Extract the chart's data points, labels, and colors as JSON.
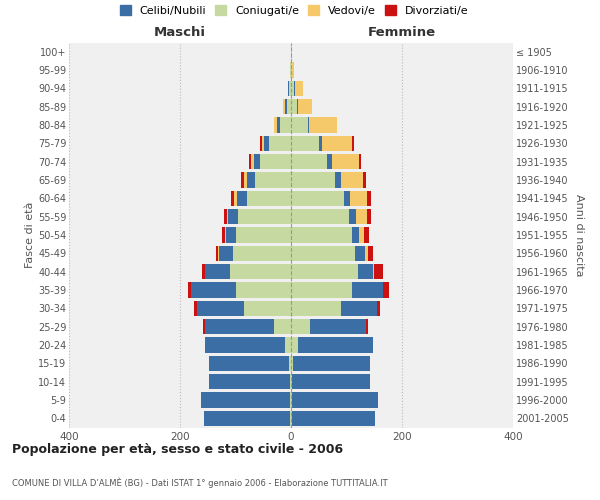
{
  "age_groups": [
    "0-4",
    "5-9",
    "10-14",
    "15-19",
    "20-24",
    "25-29",
    "30-34",
    "35-39",
    "40-44",
    "45-49",
    "50-54",
    "55-59",
    "60-64",
    "65-69",
    "70-74",
    "75-79",
    "80-84",
    "85-89",
    "90-94",
    "95-99",
    "100+"
  ],
  "birth_years": [
    "2001-2005",
    "1996-2000",
    "1991-1995",
    "1986-1990",
    "1981-1985",
    "1976-1980",
    "1971-1975",
    "1966-1970",
    "1961-1965",
    "1956-1960",
    "1951-1955",
    "1946-1950",
    "1941-1945",
    "1936-1940",
    "1931-1935",
    "1926-1930",
    "1921-1925",
    "1916-1920",
    "1911-1915",
    "1906-1910",
    "≤ 1905"
  ],
  "colors": {
    "celibi": "#3a6ea5",
    "coniugati": "#c5d9a0",
    "vedovi": "#f5c96a",
    "divorziati": "#cc1111"
  },
  "maschi": {
    "coniugati": [
      2,
      2,
      2,
      3,
      10,
      30,
      85,
      100,
      110,
      105,
      100,
      95,
      80,
      65,
      55,
      40,
      20,
      8,
      3,
      1,
      0
    ],
    "celibi": [
      155,
      160,
      145,
      145,
      145,
      125,
      85,
      80,
      45,
      25,
      17,
      18,
      18,
      15,
      12,
      8,
      5,
      3,
      2,
      0,
      0
    ],
    "vedovi": [
      0,
      0,
      0,
      0,
      0,
      0,
      0,
      0,
      0,
      1,
      2,
      3,
      5,
      5,
      5,
      5,
      5,
      3,
      1,
      0,
      0
    ],
    "divorziati": [
      0,
      0,
      0,
      0,
      0,
      3,
      4,
      5,
      5,
      5,
      5,
      5,
      5,
      5,
      3,
      3,
      0,
      0,
      0,
      0,
      0
    ]
  },
  "femmine": {
    "coniugati": [
      2,
      2,
      2,
      3,
      12,
      35,
      90,
      110,
      120,
      115,
      110,
      105,
      95,
      80,
      65,
      50,
      30,
      10,
      5,
      2,
      0
    ],
    "celibi": [
      150,
      155,
      140,
      140,
      135,
      100,
      65,
      55,
      28,
      18,
      12,
      12,
      12,
      10,
      8,
      5,
      3,
      2,
      2,
      0,
      0
    ],
    "vedovi": [
      0,
      0,
      0,
      0,
      0,
      0,
      0,
      1,
      2,
      5,
      10,
      20,
      30,
      40,
      50,
      55,
      50,
      25,
      15,
      4,
      1
    ],
    "divorziati": [
      0,
      0,
      0,
      0,
      0,
      4,
      5,
      10,
      15,
      10,
      8,
      8,
      8,
      5,
      3,
      3,
      0,
      0,
      0,
      0,
      0
    ]
  },
  "xlim": 400,
  "title": "Popolazione per età, sesso e stato civile - 2006",
  "subtitle": "COMUNE DI VILLA D’ALMÈ (BG) - Dati ISTAT 1° gennaio 2006 - Elaborazione TUTTITALIA.IT",
  "ylabel_left": "Fasce di età",
  "ylabel_right": "Anni di nascita",
  "xlabel_left": "Maschi",
  "xlabel_right": "Femmine",
  "bg_color": "#f0f0f0",
  "grid_color": "#cccccc",
  "legend_labels": [
    "Celibi/Nubili",
    "Coniugati/e",
    "Vedovi/e",
    "Divorziati/e"
  ]
}
